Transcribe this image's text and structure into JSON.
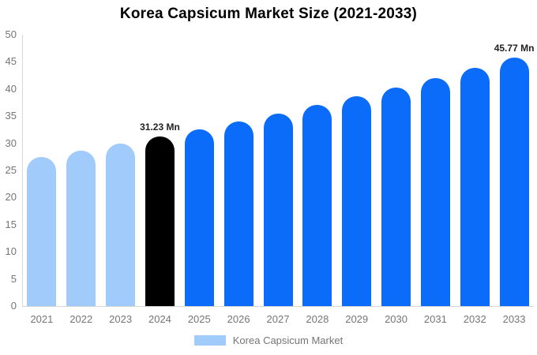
{
  "title": "Korea Capsicum Market Size (2021-2033)",
  "colors": {
    "background": "#FFFFFF",
    "axis_line": "#D6D6D6",
    "tick_text": "#757575",
    "annotation_text": "#1F1F1F",
    "title_text": "#000000",
    "bar_light_blue": "#A0CBFA",
    "bar_black": "#000000",
    "bar_blue": "#0A6CF8"
  },
  "chart_data": {
    "type": "bar",
    "title": "Korea Capsicum Market Size (2021-2033)",
    "categories": [
      "2021",
      "2022",
      "2023",
      "2024",
      "2025",
      "2026",
      "2027",
      "2028",
      "2029",
      "2030",
      "2031",
      "2032",
      "2033"
    ],
    "values": [
      27.49,
      28.69,
      29.93,
      31.23,
      32.59,
      34.0,
      35.47,
      37.01,
      38.62,
      40.3,
      42.04,
      43.87,
      45.77
    ],
    "bar_colors": [
      "#A0CBFA",
      "#A0CBFA",
      "#A0CBFA",
      "#000000",
      "#0A6CF8",
      "#0A6CF8",
      "#0A6CF8",
      "#0A6CF8",
      "#0A6CF8",
      "#0A6CF8",
      "#0A6CF8",
      "#0A6CF8",
      "#0A6CF8"
    ],
    "annotations": [
      {
        "category": "2024",
        "text": "31.23 Mn"
      },
      {
        "category": "2033",
        "text": "45.77 Mn"
      }
    ],
    "xlabel": "",
    "ylabel": "",
    "ylim": [
      0,
      50
    ],
    "yticks": [
      0,
      5,
      10,
      15,
      20,
      25,
      30,
      35,
      40,
      45,
      50
    ],
    "grid": false,
    "legend_position": "bottom",
    "legend": [
      {
        "label": "Korea Capsicum Market",
        "color": "#A0CBFA"
      }
    ]
  }
}
